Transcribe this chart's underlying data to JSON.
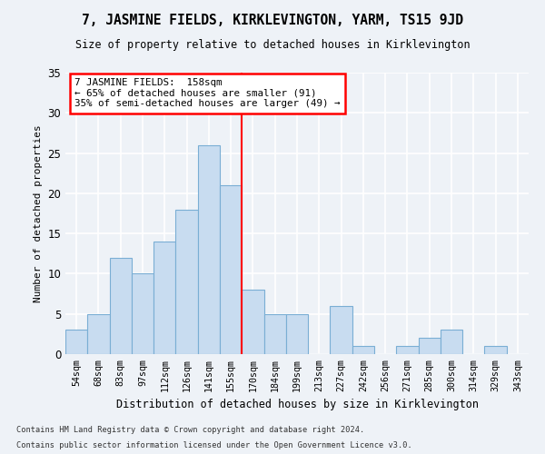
{
  "title": "7, JASMINE FIELDS, KIRKLEVINGTON, YARM, TS15 9JD",
  "subtitle": "Size of property relative to detached houses in Kirklevington",
  "xlabel": "Distribution of detached houses by size in Kirklevington",
  "ylabel": "Number of detached properties",
  "categories": [
    "54sqm",
    "68sqm",
    "83sqm",
    "97sqm",
    "112sqm",
    "126sqm",
    "141sqm",
    "155sqm",
    "170sqm",
    "184sqm",
    "199sqm",
    "213sqm",
    "227sqm",
    "242sqm",
    "256sqm",
    "271sqm",
    "285sqm",
    "300sqm",
    "314sqm",
    "329sqm",
    "343sqm"
  ],
  "values": [
    3,
    5,
    12,
    10,
    14,
    18,
    26,
    21,
    8,
    5,
    5,
    0,
    6,
    1,
    0,
    1,
    2,
    3,
    0,
    1,
    0
  ],
  "bar_color": "#c8dcf0",
  "bar_edge_color": "#7aaed4",
  "bar_width": 1.0,
  "vline_index": 7,
  "vline_color": "red",
  "annotation_text": "7 JASMINE FIELDS:  158sqm\n← 65% of detached houses are smaller (91)\n35% of semi-detached houses are larger (49) →",
  "annotation_box_color": "white",
  "annotation_box_edge_color": "red",
  "ylim": [
    0,
    35
  ],
  "yticks": [
    0,
    5,
    10,
    15,
    20,
    25,
    30,
    35
  ],
  "bg_color": "#eef2f7",
  "grid_color": "white",
  "footnote1": "Contains HM Land Registry data © Crown copyright and database right 2024.",
  "footnote2": "Contains public sector information licensed under the Open Government Licence v3.0."
}
